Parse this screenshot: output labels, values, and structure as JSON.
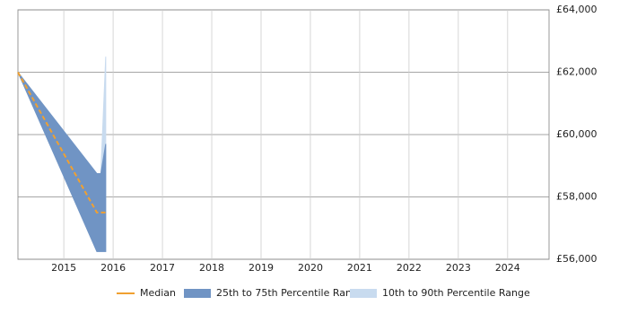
{
  "chart_data": {
    "type": "band",
    "x": [
      2014.07,
      2015.67,
      2015.75,
      2015.85
    ],
    "xlim": [
      2014.07,
      2024.84
    ],
    "xticks": [
      2015,
      2016,
      2017,
      2018,
      2019,
      2020,
      2021,
      2022,
      2023,
      2024
    ],
    "ylim": [
      56000,
      64000
    ],
    "yticks": [
      {
        "value": 56000,
        "label": "£56,000"
      },
      {
        "value": 58000,
        "label": "£58,000"
      },
      {
        "value": 60000,
        "label": "£60,000"
      },
      {
        "value": 62000,
        "label": "£62,000"
      },
      {
        "value": 64000,
        "label": "£64,000"
      }
    ],
    "grid": true,
    "legend": "bottom",
    "series": [
      {
        "name": "Median",
        "color": "#f0a030",
        "values": [
          62000,
          57500,
          57500,
          57500
        ]
      },
      {
        "name": "25th to 75th Percentile Range",
        "color": "#7094c4",
        "lower": [
          62000,
          56250,
          56250,
          56250
        ],
        "upper": [
          62000,
          58750,
          58750,
          59700
        ]
      },
      {
        "name": "10th to 90th Percentile Range",
        "color": "#c8dbef",
        "lower": [
          62000,
          56250,
          56250,
          56250
        ],
        "upper": [
          62000,
          58750,
          58750,
          62500
        ]
      }
    ]
  }
}
